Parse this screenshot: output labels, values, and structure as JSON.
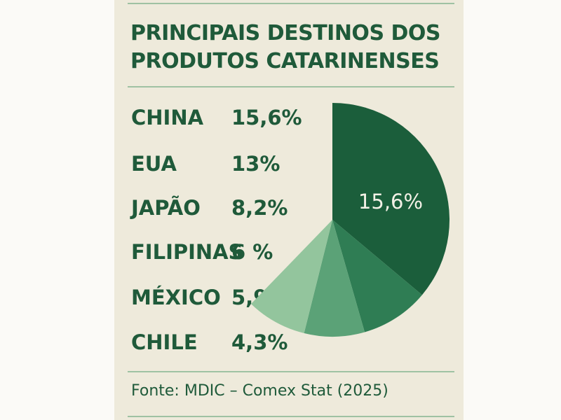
{
  "chart_data": {
    "type": "pie",
    "title": "PRINCIPAIS DESTINOS DOS PRODUTOS CATARINENSES",
    "categories": [
      "CHINA",
      "EUA",
      "JAPÃO",
      "FILIPINAS",
      "MÉXICO",
      "CHILE"
    ],
    "values": [
      15.6,
      13,
      8.2,
      6,
      5.9,
      4.3
    ],
    "value_labels": [
      "15,6%",
      "13%",
      "8,2%",
      "6 %",
      "5,9%",
      "4,3%"
    ],
    "slice_label": "15,6%",
    "unit": "%",
    "source": "Fonte: MDIC – Comex Stat (2025)",
    "colors": [
      "#1b5e3b",
      "#2f7d54",
      "#5ba277",
      "#93c59d"
    ]
  }
}
